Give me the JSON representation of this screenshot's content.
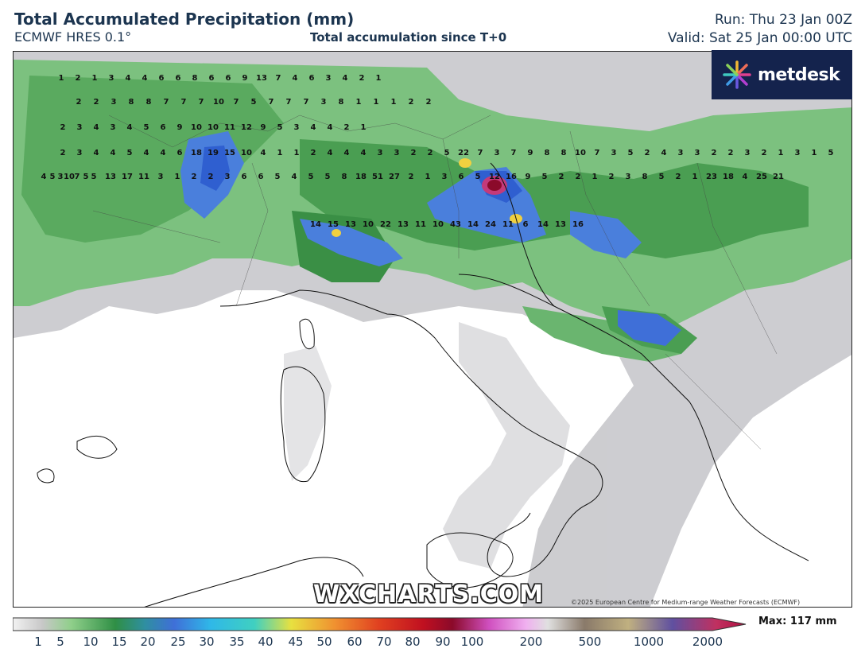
{
  "header": {
    "title": "Total Accumulated Precipitation (mm)",
    "model": "ECMWF HRES 0.1°",
    "accumulation_note": "Total accumulation since T+0",
    "run": "Run: Thu 23 Jan 00Z",
    "valid": "Valid: Sat 25 Jan 00:00 UTC"
  },
  "branding": {
    "logo_text": "metdesk",
    "logo_icon": "metdesk-starburst-icon",
    "watermark": "WXCHARTS.COM",
    "copyright": "©2025 European Centre for Medium-range Weather Forecasts (ECMWF)"
  },
  "colorbar": {
    "unit": "mm",
    "tick_labels": [
      "1",
      "5",
      "10",
      "15",
      "20",
      "25",
      "30",
      "35",
      "40",
      "45",
      "50",
      "60",
      "70",
      "80",
      "90",
      "100",
      "200",
      "500",
      "1000",
      "2000"
    ],
    "max_label": "Max: 117 mm"
  },
  "colors": {
    "header_text": "#1c3550",
    "logo_bg": "#14234d",
    "land": "#ffffff",
    "light_precip": "#b8b8b8",
    "green_low": "#5fb86a",
    "green_mid": "#2f8f45",
    "blue": "#3f6fd8",
    "peak": "#8b0a2a"
  },
  "station_values": [
    "1",
    "2",
    "1",
    "3",
    "4",
    "4",
    "6",
    "6",
    "8",
    "6",
    "6",
    "9",
    "13",
    "7",
    "4",
    "6",
    "3",
    "4",
    "2",
    "1",
    "2",
    "2",
    "3",
    "8",
    "8",
    "7",
    "7",
    "7",
    "10",
    "7",
    "5",
    "7",
    "7",
    "7",
    "3",
    "8",
    "1",
    "1",
    "1",
    "2",
    "2",
    "2",
    "3",
    "4",
    "3",
    "4",
    "5",
    "6",
    "9",
    "10",
    "10",
    "11",
    "12",
    "9",
    "5",
    "3",
    "4",
    "4",
    "2",
    "1",
    "2",
    "3",
    "4",
    "4",
    "5",
    "4",
    "4",
    "6",
    "18",
    "19",
    "15",
    "10",
    "4",
    "1",
    "1",
    "2",
    "4",
    "4",
    "4",
    "3",
    "3",
    "2",
    "2",
    "5",
    "22",
    "7",
    "3",
    "7",
    "9",
    "8",
    "8",
    "10",
    "7",
    "3",
    "5",
    "2",
    "4",
    "3",
    "3",
    "2",
    "2",
    "3",
    "2",
    "1",
    "3",
    "1",
    "5",
    "5",
    "10",
    "5",
    "4",
    "3",
    "7",
    "5",
    "13",
    "17",
    "11",
    "3",
    "1",
    "2",
    "2",
    "3",
    "6",
    "6",
    "5",
    "4",
    "5",
    "5",
    "8",
    "18",
    "51",
    "27",
    "2",
    "1",
    "3",
    "6",
    "5",
    "12",
    "16",
    "9",
    "5",
    "2",
    "2",
    "1",
    "2",
    "3",
    "8",
    "5",
    "2",
    "1",
    "23",
    "18",
    "4",
    "25",
    "21",
    "14",
    "15",
    "13",
    "10",
    "22",
    "13",
    "11",
    "10",
    "43",
    "14",
    "24",
    "11",
    "6",
    "14",
    "13",
    "16"
  ]
}
